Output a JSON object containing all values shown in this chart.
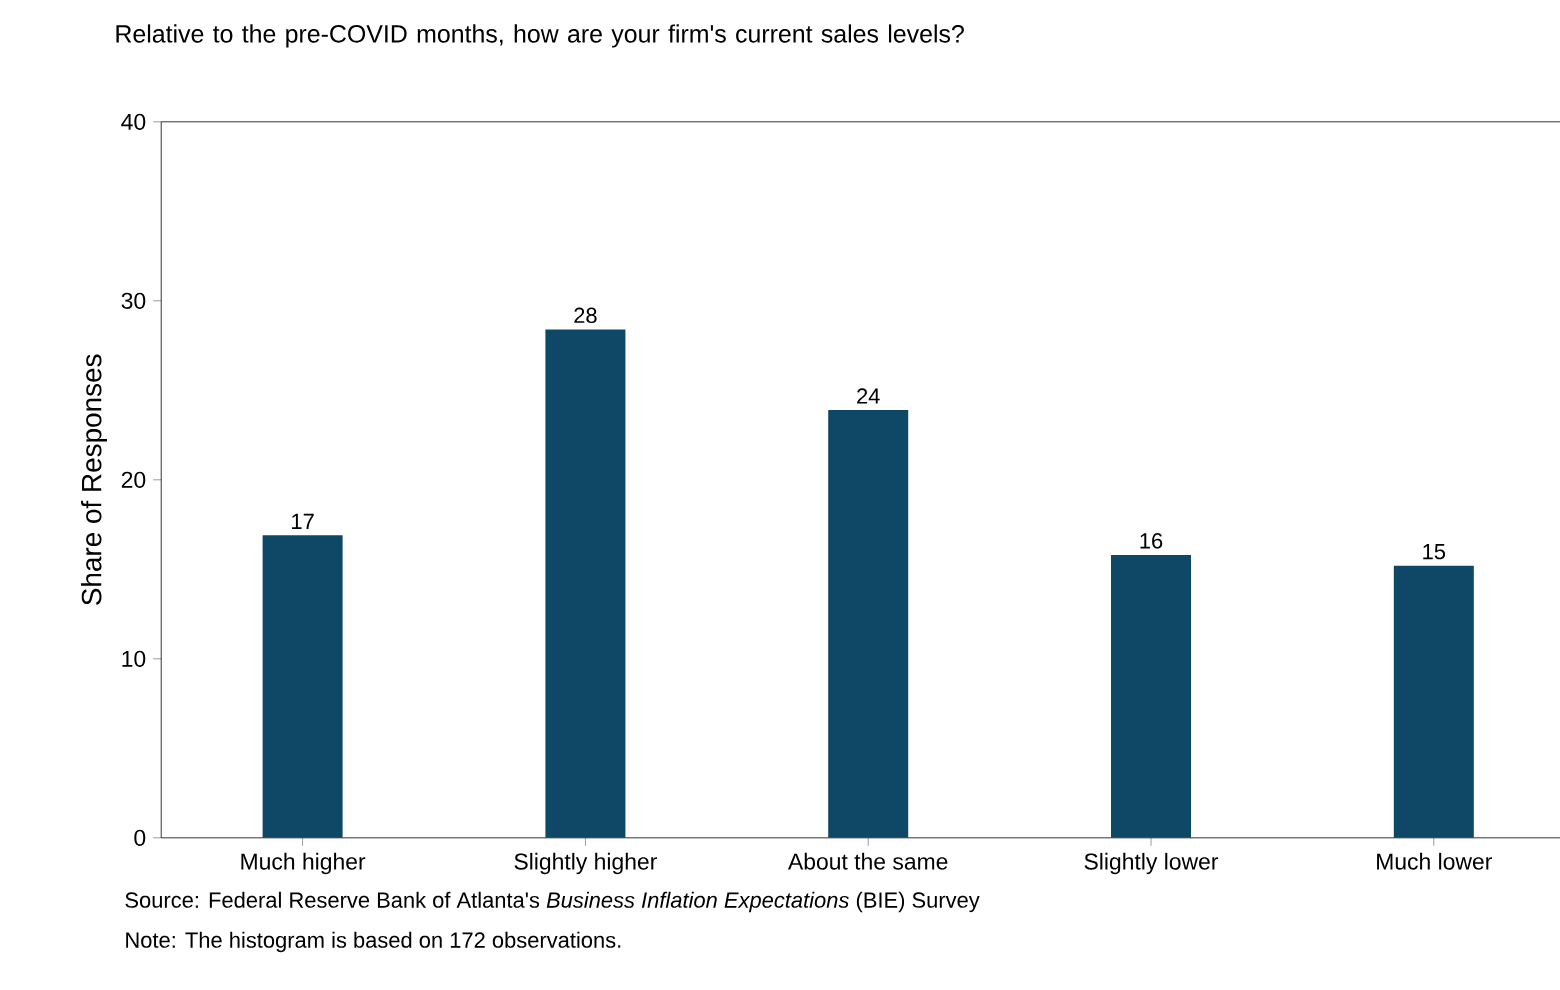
{
  "chart_data": {
    "type": "bar",
    "title": "Relative to the pre-COVID months, how are your firm's current sales levels?",
    "ylabel": "Share of Responses",
    "categories": [
      "Much higher",
      "Slightly higher",
      "About the same",
      "Slightly lower",
      "Much lower"
    ],
    "values": [
      16.9,
      28.4,
      23.9,
      15.8,
      15.2
    ],
    "value_labels": [
      "17",
      "28",
      "24",
      "16",
      "15"
    ],
    "color": "#0f4767",
    "ylim": [
      0,
      40
    ],
    "yticks": [
      0,
      10,
      20,
      30,
      40
    ],
    "grid": false,
    "annotations": [
      "Source: Federal Reserve Bank of Atlanta's *Business Inflation Expectations* (BIE) Survey",
      "Note: The histogram is based on 172 observations."
    ]
  }
}
